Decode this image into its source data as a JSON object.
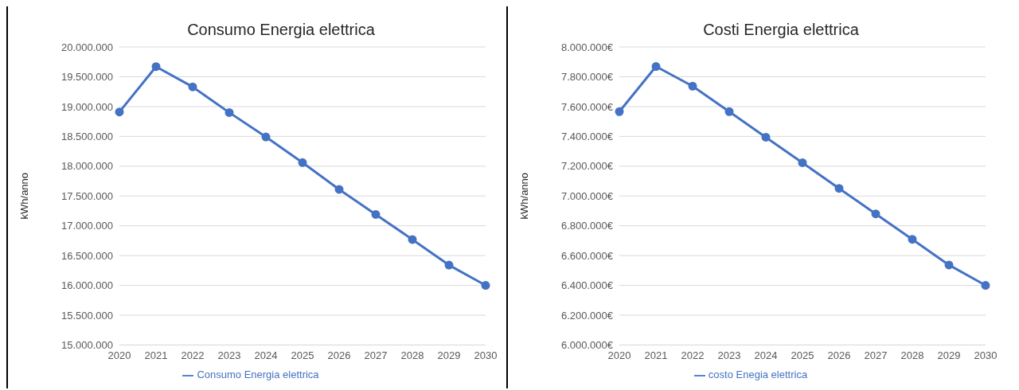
{
  "chart_data": [
    {
      "type": "line",
      "title": "Consumo Energia elettrica",
      "ylabel": "kWh/anno",
      "categories": [
        "2020",
        "2021",
        "2022",
        "2023",
        "2024",
        "2025",
        "2026",
        "2027",
        "2028",
        "2029",
        "2030"
      ],
      "series": [
        {
          "name": "Consumo Energia elettrica",
          "color": "#4472c4",
          "values": [
            18910000,
            19670000,
            19330000,
            18900000,
            18490000,
            18060000,
            17610000,
            17190000,
            16770000,
            16340000,
            16000000
          ]
        }
      ],
      "ylim": [
        15000000,
        20000000
      ],
      "yticks": [
        {
          "value": 15000000,
          "label": "15.000.000"
        },
        {
          "value": 15500000,
          "label": "15.500.000"
        },
        {
          "value": 16000000,
          "label": "16.000.000"
        },
        {
          "value": 16500000,
          "label": "16.500.000"
        },
        {
          "value": 17000000,
          "label": "17.000.000"
        },
        {
          "value": 17500000,
          "label": "17.500.000"
        },
        {
          "value": 18000000,
          "label": "18.000.000"
        },
        {
          "value": 18500000,
          "label": "18.500.000"
        },
        {
          "value": 19000000,
          "label": "19.000.000"
        },
        {
          "value": 19500000,
          "label": "19.500.000"
        },
        {
          "value": 20000000,
          "label": "20.000.000"
        }
      ],
      "grid": "y",
      "legend": "bottom",
      "marker": "circle",
      "line_style": "solid"
    },
    {
      "type": "line",
      "title": "Costi Energia elettrica",
      "ylabel": "kWh/anno",
      "categories": [
        "2020",
        "2021",
        "2022",
        "2023",
        "2024",
        "2025",
        "2026",
        "2027",
        "2028",
        "2029",
        "2030"
      ],
      "series": [
        {
          "name": "costo Enegia elettrica",
          "color": "#4472c4",
          "values": [
            7566000,
            7869000,
            7737000,
            7566000,
            7394000,
            7223000,
            7051000,
            6880000,
            6709000,
            6537000,
            6400000
          ]
        }
      ],
      "ylim": [
        6000000,
        8000000
      ],
      "yticks": [
        {
          "value": 6000000,
          "label": "6.000.000€"
        },
        {
          "value": 6200000,
          "label": "6.200.000€"
        },
        {
          "value": 6400000,
          "label": "6.400.000€"
        },
        {
          "value": 6600000,
          "label": "6.600.000€"
        },
        {
          "value": 6800000,
          "label": "6.800.000€"
        },
        {
          "value": 7000000,
          "label": "7.000.000€"
        },
        {
          "value": 7200000,
          "label": "7.200.000€"
        },
        {
          "value": 7400000,
          "label": "7.400.000€"
        },
        {
          "value": 7600000,
          "label": "7.600.000€"
        },
        {
          "value": 7800000,
          "label": "7.800.000€"
        },
        {
          "value": 8000000,
          "label": "8.000.000€"
        }
      ],
      "grid": "y",
      "legend": "bottom",
      "marker": "circle",
      "line_style": "solid"
    }
  ]
}
